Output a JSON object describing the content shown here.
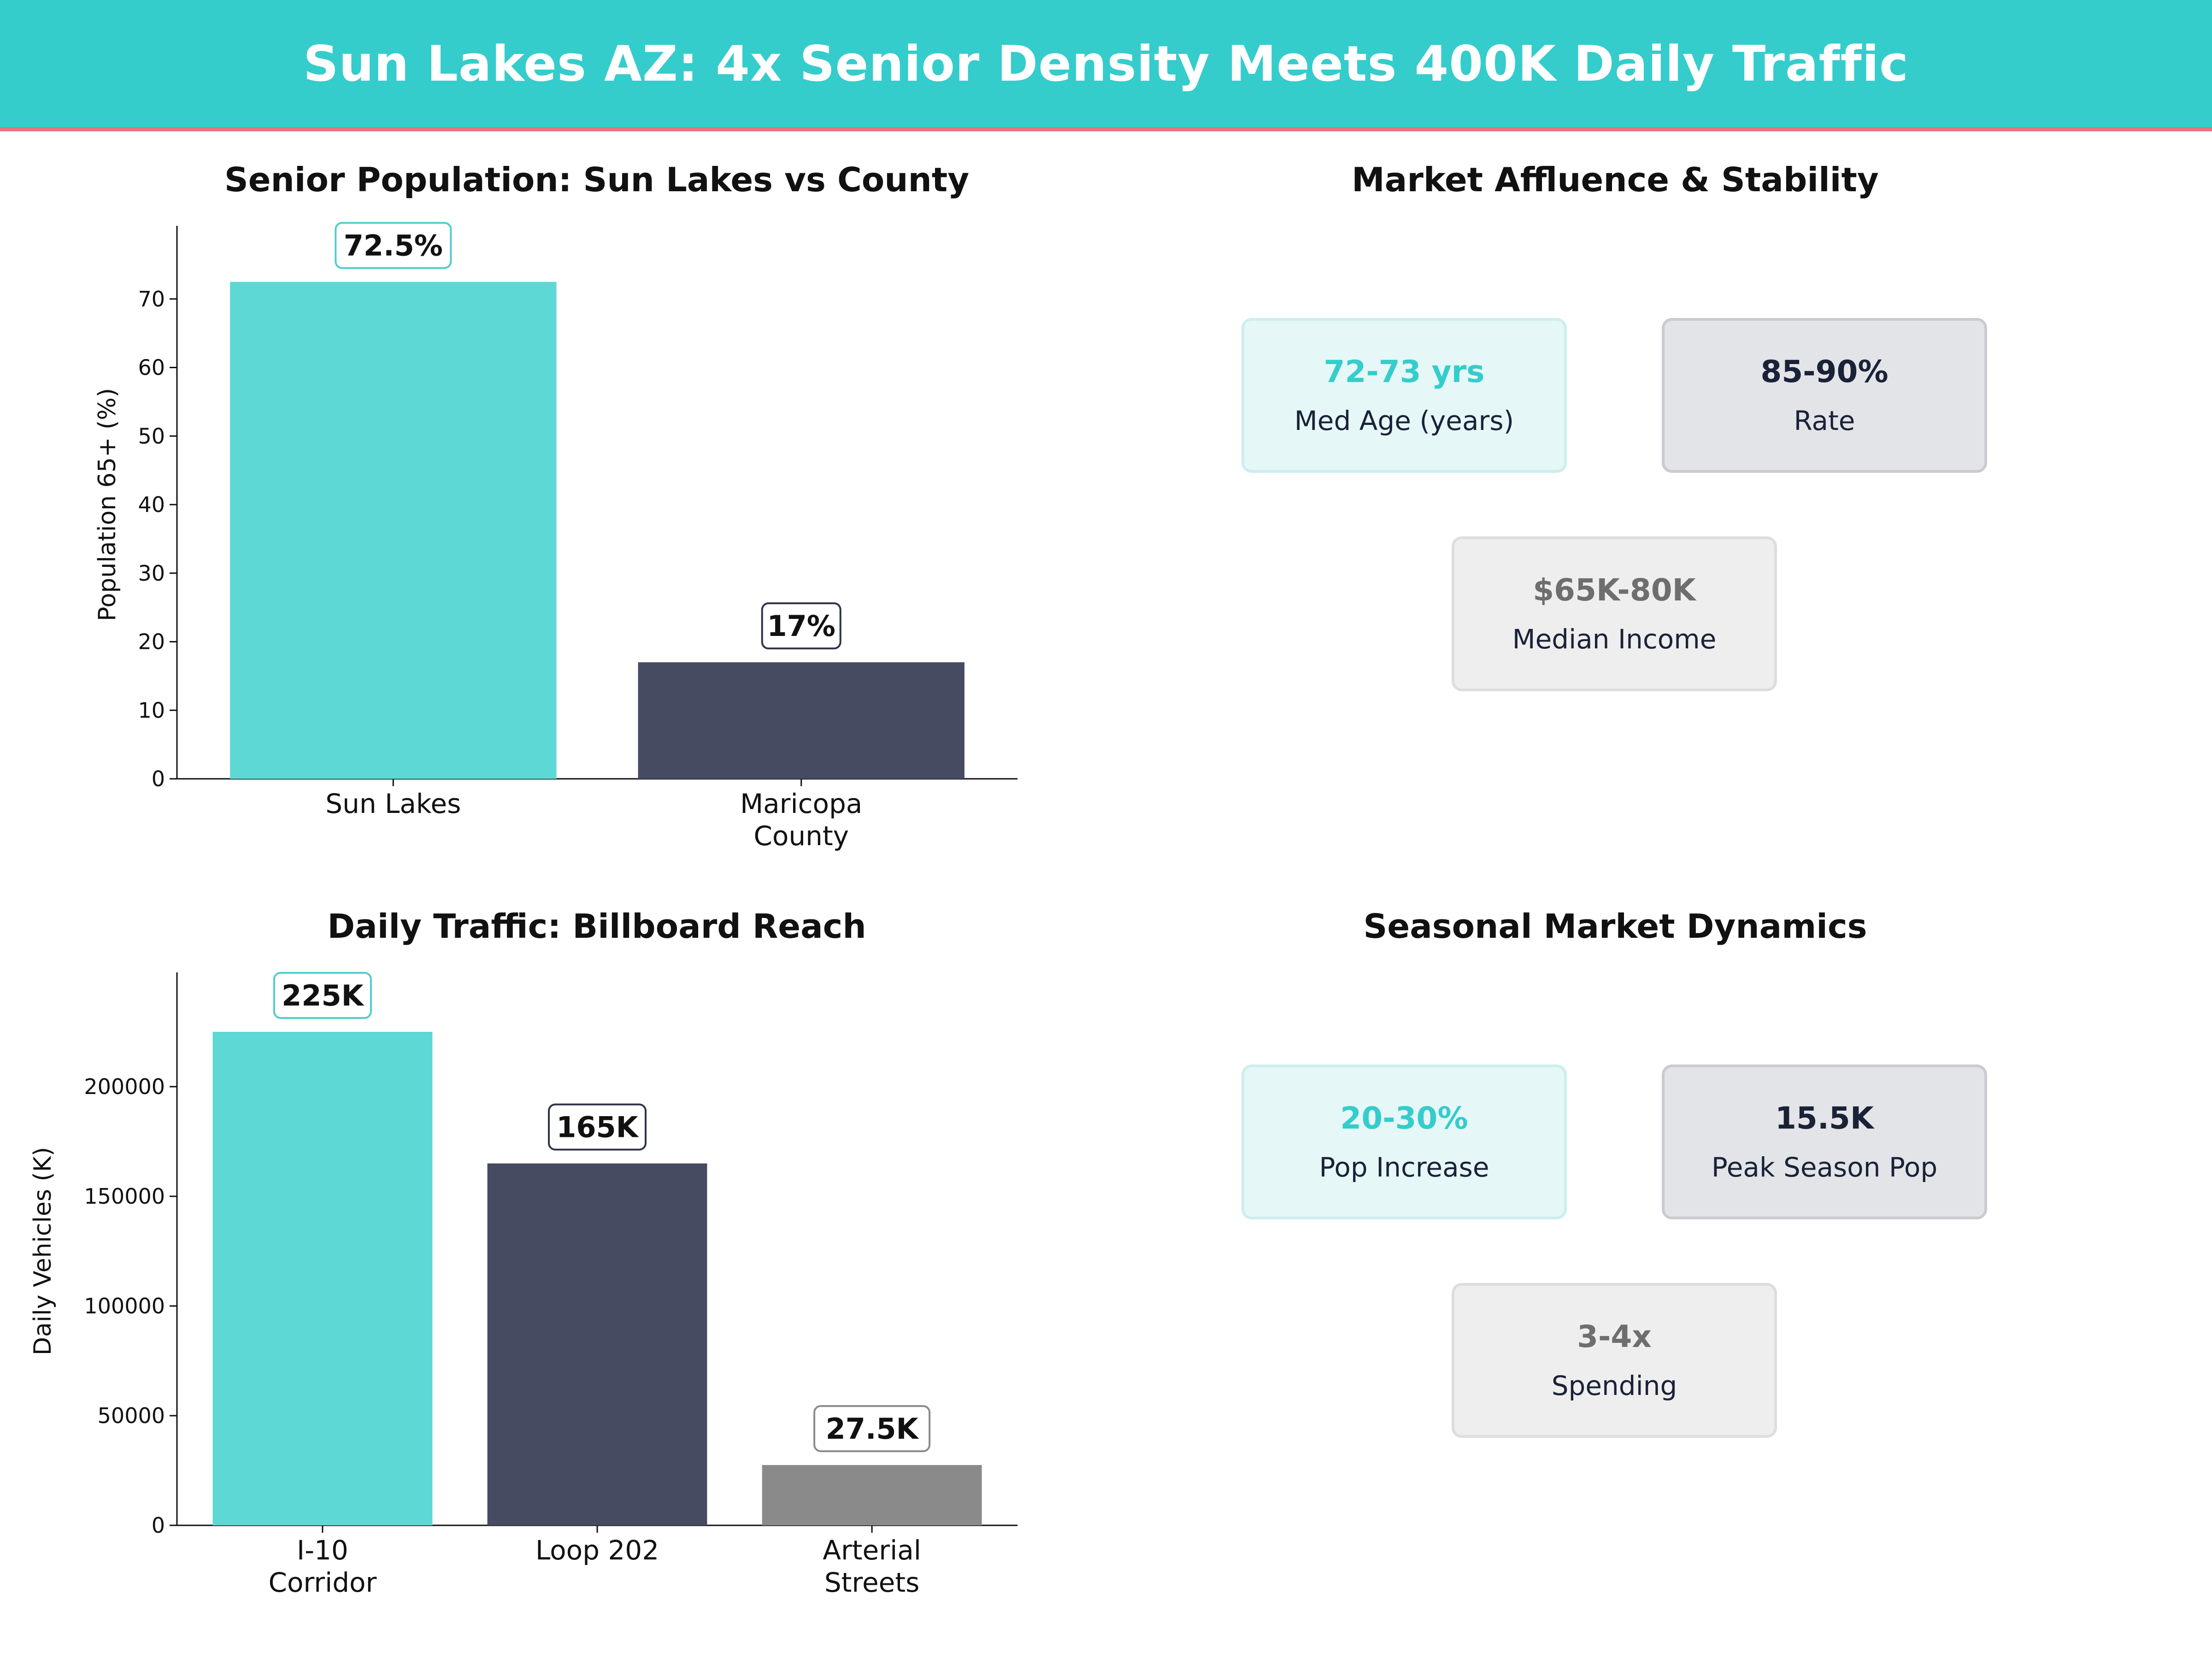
{
  "title": "Sun Lakes AZ: 4x Senior Density Meets 400K Daily Traffic",
  "colors": {
    "teal": "#5dd8d5",
    "navy": "#464b61",
    "gray": "#8a8a8a",
    "banner": "#35cccc",
    "accent_line": "#e8737f"
  },
  "chart_data": [
    {
      "type": "bar",
      "title": "Senior Population: Sun Lakes vs County",
      "categories": [
        [
          "Sun Lakes"
        ],
        [
          "Maricopa",
          "County"
        ]
      ],
      "values": [
        72.5,
        17
      ],
      "value_labels": [
        "72.5%",
        "17%"
      ],
      "bar_colors": [
        "#5dd8d5",
        "#464b61"
      ],
      "label_border_colors": [
        "#4ecfcc",
        "#2f3347"
      ],
      "ylabel": "Population 65+ (%)",
      "ylim": [
        0,
        80
      ],
      "yticks": [
        0,
        10,
        20,
        30,
        40,
        50,
        60,
        70
      ],
      "ytick_labels": [
        "0",
        "10",
        "20",
        "30",
        "40",
        "50",
        "60",
        "70"
      ],
      "grid": false
    },
    {
      "type": "bar",
      "title": "Daily Traffic: Billboard Reach",
      "categories": [
        [
          "I-10",
          "Corridor"
        ],
        [
          "Loop 202"
        ],
        [
          "Arterial",
          "Streets"
        ]
      ],
      "values": [
        225000,
        165000,
        27500
      ],
      "value_labels": [
        "225K",
        "165K",
        "27.5K"
      ],
      "bar_colors": [
        "#5dd8d5",
        "#464b61",
        "#8a8a8a"
      ],
      "label_border_colors": [
        "#4ecfcc",
        "#2f3347",
        "#8a8a8a"
      ],
      "ylabel": "Daily Vehicles (K)",
      "ylim": [
        0,
        250000
      ],
      "yticks": [
        0,
        50000,
        100000,
        150000,
        200000
      ],
      "ytick_labels": [
        "0",
        "50000",
        "100000",
        "150000",
        "200000"
      ],
      "grid": false
    }
  ],
  "affluence": {
    "title": "Market Affluence & Stability",
    "cards": [
      {
        "value": "72-73 yrs",
        "label": "Med Age (years)",
        "value_color": "#35cccc",
        "bg": "#e6f7f7",
        "border": "#cdeeee"
      },
      {
        "value": "85-90%",
        "label": "Rate",
        "value_color": "#1a2238",
        "bg": "#e3e4e8",
        "border": "#c9cbd1"
      },
      {
        "value": "$65K-80K",
        "label": "Median Income",
        "value_color": "#6e6e6e",
        "bg": "#eeeeee",
        "border": "#dddddd"
      }
    ]
  },
  "seasonal": {
    "title": "Seasonal Market Dynamics",
    "cards": [
      {
        "value": "20-30%",
        "label": "Pop Increase",
        "value_color": "#35cccc",
        "bg": "#e6f7f7",
        "border": "#cdeeee"
      },
      {
        "value": "15.5K",
        "label": "Peak Season Pop",
        "value_color": "#1a2238",
        "bg": "#e3e4e8",
        "border": "#c9cbd1"
      },
      {
        "value": "3-4x",
        "label": "Spending",
        "value_color": "#6e6e6e",
        "bg": "#eeeeee",
        "border": "#dddddd"
      }
    ]
  }
}
